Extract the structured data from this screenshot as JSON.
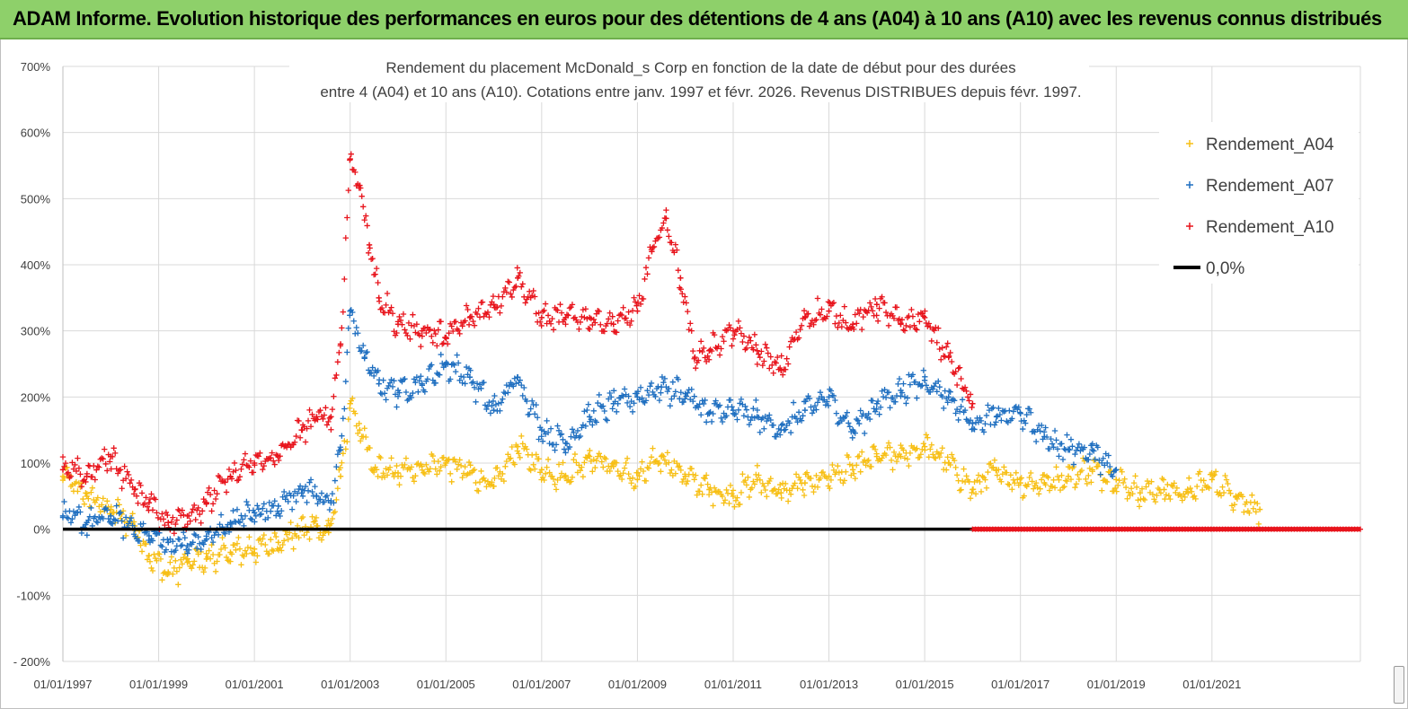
{
  "banner": {
    "title": "ADAM Informe. Evolution historique des performances en euros pour des détentions de 4 ans (A04) à 10 ans (A10) avec les revenus connus distribués"
  },
  "colors": {
    "banner_bg": "#8ed06a",
    "a04": "#f7bf14",
    "a07": "#1f6fc0",
    "a10": "#e8141c",
    "zero_line": "#000000"
  },
  "chart_data": {
    "type": "scatter",
    "title": "Rendement du placement McDonald_s Corp en fonction de la date de début pour des durées",
    "subtitle": "entre 4 (A04) et 10 ans (A10). Cotations entre janv. 1997 et févr. 2026. Revenus DISTRIBUES depuis févr. 1997.",
    "xlabel": "",
    "ylabel": "",
    "xlim": [
      1997,
      2024.1
    ],
    "ylim": [
      -200,
      700
    ],
    "x_ticks": [
      1997,
      1999,
      2001,
      2003,
      2005,
      2007,
      2009,
      2011,
      2013,
      2015,
      2017,
      2019,
      2021
    ],
    "x_tick_labels": [
      "01/01/1997",
      "01/01/1999",
      "01/01/2001",
      "01/01/2003",
      "01/01/2005",
      "01/01/2007",
      "01/01/2009",
      "01/01/2011",
      "01/01/2013",
      "01/01/2015",
      "01/01/2017",
      "01/01/2019",
      "01/01/2021"
    ],
    "y_ticks": [
      -200,
      -100,
      0,
      100,
      200,
      300,
      400,
      500,
      600,
      700
    ],
    "y_tick_labels": [
      "- 200%",
      "-100%",
      "0%",
      "100%",
      "200%",
      "300%",
      "400%",
      "500%",
      "600%",
      "700%"
    ],
    "legend_position": "right",
    "series": [
      {
        "name": "Rendement_A04",
        "color": "#f7bf14",
        "marker": "+",
        "x": [
          1997.0,
          1997.5,
          1998.0,
          1998.5,
          1998.8,
          1999.2,
          1999.6,
          2000.0,
          2000.5,
          2001.0,
          2001.5,
          2002.0,
          2002.3,
          2002.55,
          2002.8,
          2003.0,
          2003.2,
          2003.5,
          2004.0,
          2004.5,
          2005.0,
          2005.5,
          2006.0,
          2006.5,
          2007.0,
          2007.5,
          2008.0,
          2008.5,
          2009.0,
          2009.5,
          2010.0,
          2010.5,
          2011.0,
          2011.5,
          2012.0,
          2012.5,
          2013.0,
          2013.5,
          2014.0,
          2014.5,
          2015.0,
          2015.5,
          2016.0,
          2016.5,
          2017.0,
          2017.5,
          2018.0,
          2018.5,
          2019.0,
          2019.5,
          2020.0,
          2020.5,
          2021.0,
          2021.5,
          2022.0
        ],
        "y": [
          80,
          50,
          30,
          5,
          -40,
          -65,
          -50,
          -45,
          -35,
          -30,
          -20,
          0,
          5,
          -5,
          80,
          190,
          150,
          90,
          85,
          95,
          100,
          85,
          65,
          125,
          90,
          80,
          110,
          95,
          75,
          110,
          80,
          60,
          50,
          75,
          55,
          70,
          80,
          90,
          110,
          110,
          125,
          100,
          60,
          90,
          70,
          70,
          80,
          90,
          75,
          55,
          60,
          55,
          75,
          50,
          30
        ]
      },
      {
        "name": "Rendement_A07",
        "color": "#1f6fc0",
        "marker": "+",
        "x": [
          1997.0,
          1997.5,
          1998.0,
          1998.5,
          1998.8,
          1999.2,
          1999.6,
          2000.0,
          2000.5,
          2001.0,
          2001.5,
          2002.0,
          2002.3,
          2002.6,
          2002.8,
          2003.0,
          2003.3,
          2003.6,
          2004.0,
          2004.5,
          2005.0,
          2005.5,
          2006.0,
          2006.5,
          2007.0,
          2007.5,
          2008.0,
          2008.5,
          2009.0,
          2009.5,
          2010.0,
          2010.5,
          2011.0,
          2011.5,
          2012.0,
          2012.5,
          2013.0,
          2013.5,
          2014.0,
          2014.5,
          2015.0,
          2015.5,
          2016.0,
          2016.5,
          2017.0,
          2017.5,
          2018.0,
          2018.5,
          2019.0
        ],
        "y": [
          20,
          10,
          20,
          0,
          -10,
          -20,
          -25,
          -15,
          10,
          25,
          35,
          60,
          50,
          40,
          120,
          330,
          260,
          220,
          210,
          220,
          250,
          230,
          180,
          230,
          150,
          130,
          170,
          190,
          200,
          215,
          205,
          175,
          180,
          170,
          150,
          180,
          200,
          150,
          190,
          210,
          225,
          200,
          160,
          170,
          175,
          140,
          120,
          120,
          90
        ]
      },
      {
        "name": "Rendement_A10",
        "color": "#e8141c",
        "marker": "+",
        "x": [
          1997.0,
          1997.5,
          1998.0,
          1998.5,
          1998.8,
          1999.2,
          1999.6,
          2000.0,
          2000.5,
          2001.0,
          2001.5,
          2002.0,
          2002.3,
          2002.6,
          2002.8,
          2003.0,
          2003.2,
          2003.4,
          2003.6,
          2004.0,
          2004.5,
          2005.0,
          2005.5,
          2006.0,
          2006.5,
          2007.0,
          2007.5,
          2008.0,
          2008.5,
          2009.0,
          2009.3,
          2009.6,
          2009.9,
          2010.2,
          2010.5,
          2011.0,
          2011.5,
          2012.0,
          2012.5,
          2013.0,
          2013.5,
          2014.0,
          2014.5,
          2015.0,
          2015.5,
          2016.0
        ],
        "y": [
          90,
          80,
          110,
          60,
          40,
          10,
          20,
          40,
          80,
          100,
          110,
          150,
          170,
          170,
          280,
          560,
          520,
          430,
          350,
          310,
          300,
          290,
          320,
          340,
          380,
          320,
          320,
          320,
          310,
          330,
          420,
          470,
          380,
          260,
          270,
          300,
          270,
          240,
          320,
          330,
          310,
          340,
          310,
          320,
          260,
          190
        ]
      },
      {
        "name": "0,0%",
        "color": "#000000",
        "type": "line",
        "x": [
          1997,
          2016.0
        ],
        "y": [
          0,
          0
        ]
      },
      {
        "name": "Rendement_A10 (0% segment)",
        "color": "#e8141c",
        "type": "dense-markers",
        "x": [
          2016.0,
          2024.1
        ],
        "y": [
          0,
          0
        ]
      }
    ],
    "legend": [
      {
        "label": "Rendement_A04",
        "color": "#f7bf14",
        "symbol": "+"
      },
      {
        "label": "Rendement_A07",
        "color": "#1f6fc0",
        "symbol": "+"
      },
      {
        "label": "Rendement_A10",
        "color": "#e8141c",
        "symbol": "+"
      },
      {
        "label": "0,0%",
        "color": "#000000",
        "symbol": "line"
      }
    ]
  }
}
